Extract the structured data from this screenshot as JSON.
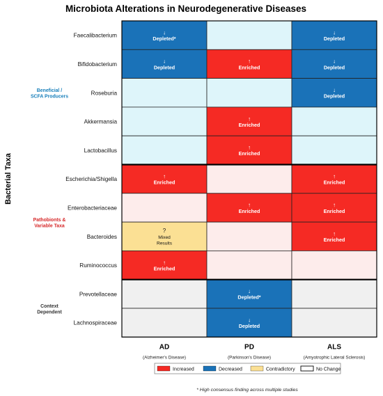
{
  "chart_data": {
    "type": "heatmap",
    "title": "Microbiota Alterations in Neurodegenerative Diseases",
    "ylabel": "Bacterial Taxa",
    "columns": [
      {
        "label": "AD",
        "sublabel": "(Alzheimer's Disease)"
      },
      {
        "label": "PD",
        "sublabel": "(Parkinson's Disease)"
      },
      {
        "label": "ALS",
        "sublabel": "(Amyotrophic Lateral Sclerosis)"
      }
    ],
    "rows": [
      "Faecalibacterium",
      "Bifidobacterium",
      "Roseburia",
      "Akkermansia",
      "Lactobacillus",
      "Escherichia/Shigella",
      "Enterobacteriaceae",
      "Bacteroides",
      "Ruminococcus",
      "Prevotellaceae",
      "Lachnospiraceae"
    ],
    "groups": [
      {
        "label": "Beneficial /\nSCFA Producers",
        "color": "#1a80bb",
        "rows": [
          0,
          4
        ]
      },
      {
        "label": "Pathobionts &\nVariable Taxa",
        "color": "#d62728",
        "rows": [
          5,
          8
        ]
      },
      {
        "label": "Context\nDependent",
        "color": "#333333",
        "rows": [
          9,
          10
        ]
      }
    ],
    "cells": [
      [
        {
          "status": "decreased",
          "label": "Depleted*"
        },
        {
          "status": "none",
          "label": ""
        },
        {
          "status": "decreased",
          "label": "Depleted"
        }
      ],
      [
        {
          "status": "decreased",
          "label": "Depleted"
        },
        {
          "status": "increased",
          "label": "Enriched"
        },
        {
          "status": "decreased",
          "label": "Depleted"
        }
      ],
      [
        {
          "status": "none",
          "label": ""
        },
        {
          "status": "none",
          "label": ""
        },
        {
          "status": "decreased",
          "label": "Depleted"
        }
      ],
      [
        {
          "status": "none",
          "label": ""
        },
        {
          "status": "increased",
          "label": "Enriched"
        },
        {
          "status": "none",
          "label": ""
        }
      ],
      [
        {
          "status": "none",
          "label": ""
        },
        {
          "status": "increased",
          "label": "Enriched"
        },
        {
          "status": "none",
          "label": ""
        }
      ],
      [
        {
          "status": "increased",
          "label": "Enriched"
        },
        {
          "status": "none",
          "label": ""
        },
        {
          "status": "increased",
          "label": "Enriched"
        }
      ],
      [
        {
          "status": "none",
          "label": ""
        },
        {
          "status": "increased",
          "label": "Enriched"
        },
        {
          "status": "increased",
          "label": "Enriched"
        }
      ],
      [
        {
          "status": "contradictory",
          "label": "Mixed\nResults"
        },
        {
          "status": "none",
          "label": ""
        },
        {
          "status": "increased",
          "label": "Enriched"
        }
      ],
      [
        {
          "status": "increased",
          "label": "Enriched"
        },
        {
          "status": "none",
          "label": ""
        },
        {
          "status": "none",
          "label": ""
        }
      ],
      [
        {
          "status": "none",
          "label": ""
        },
        {
          "status": "decreased",
          "label": "Depleted*"
        },
        {
          "status": "none",
          "label": ""
        }
      ],
      [
        {
          "status": "none",
          "label": ""
        },
        {
          "status": "decreased",
          "label": "Depleted"
        },
        {
          "status": "none",
          "label": ""
        }
      ]
    ],
    "arrows": {
      "increased": "↑",
      "decreased": "↓",
      "contradictory": "?"
    },
    "legend": [
      {
        "key": "increased",
        "label": "Increased"
      },
      {
        "key": "decreased",
        "label": "Decreased"
      },
      {
        "key": "contradictory",
        "label": "Contradictory"
      },
      {
        "key": "none",
        "label": "No Change"
      }
    ],
    "colors": {
      "increased": "#f52a24",
      "decreased": "#1a72b8",
      "contradictory": "#fbe094",
      "none_beneficial": "#def5fa",
      "none_pathobiont": "#fdeceb",
      "none_context": "#f0f0f0",
      "grid": "#222222"
    },
    "footnote": "* High consensus finding across multiple studies"
  }
}
